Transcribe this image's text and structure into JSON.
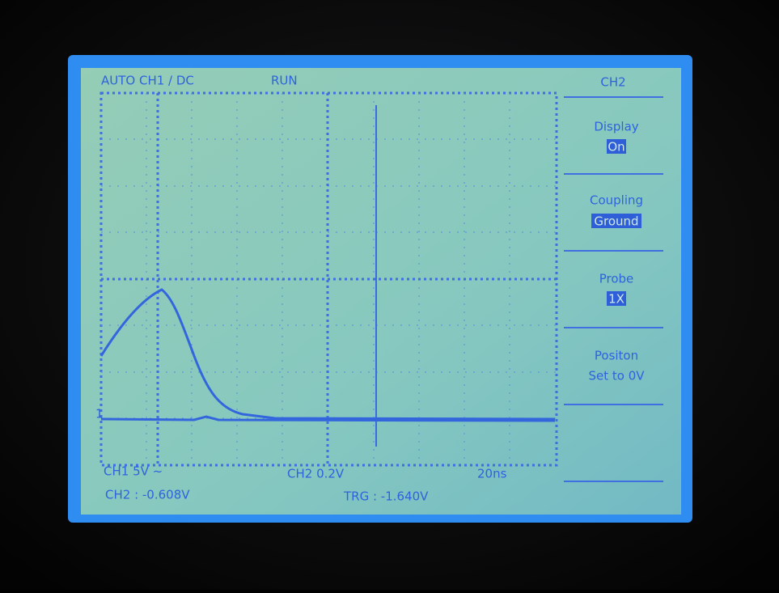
{
  "status": {
    "mode": "AUTO CH1 / DC",
    "state": "RUN"
  },
  "menu": {
    "title": "CH2",
    "items": [
      {
        "label": "Display",
        "value": "On"
      },
      {
        "label": "Coupling",
        "value": "Ground"
      },
      {
        "label": "Probe",
        "value": "1X"
      },
      {
        "label": "Positon",
        "value": "Set to 0V"
      }
    ]
  },
  "footer": {
    "ch1_scale": "CH1 5V ~",
    "ch2_scale": "CH2 0.2V",
    "timebase": "20ns",
    "ch2_readout": "CH2 : -0.608V",
    "trigger": "TRG : -1.640V"
  }
}
